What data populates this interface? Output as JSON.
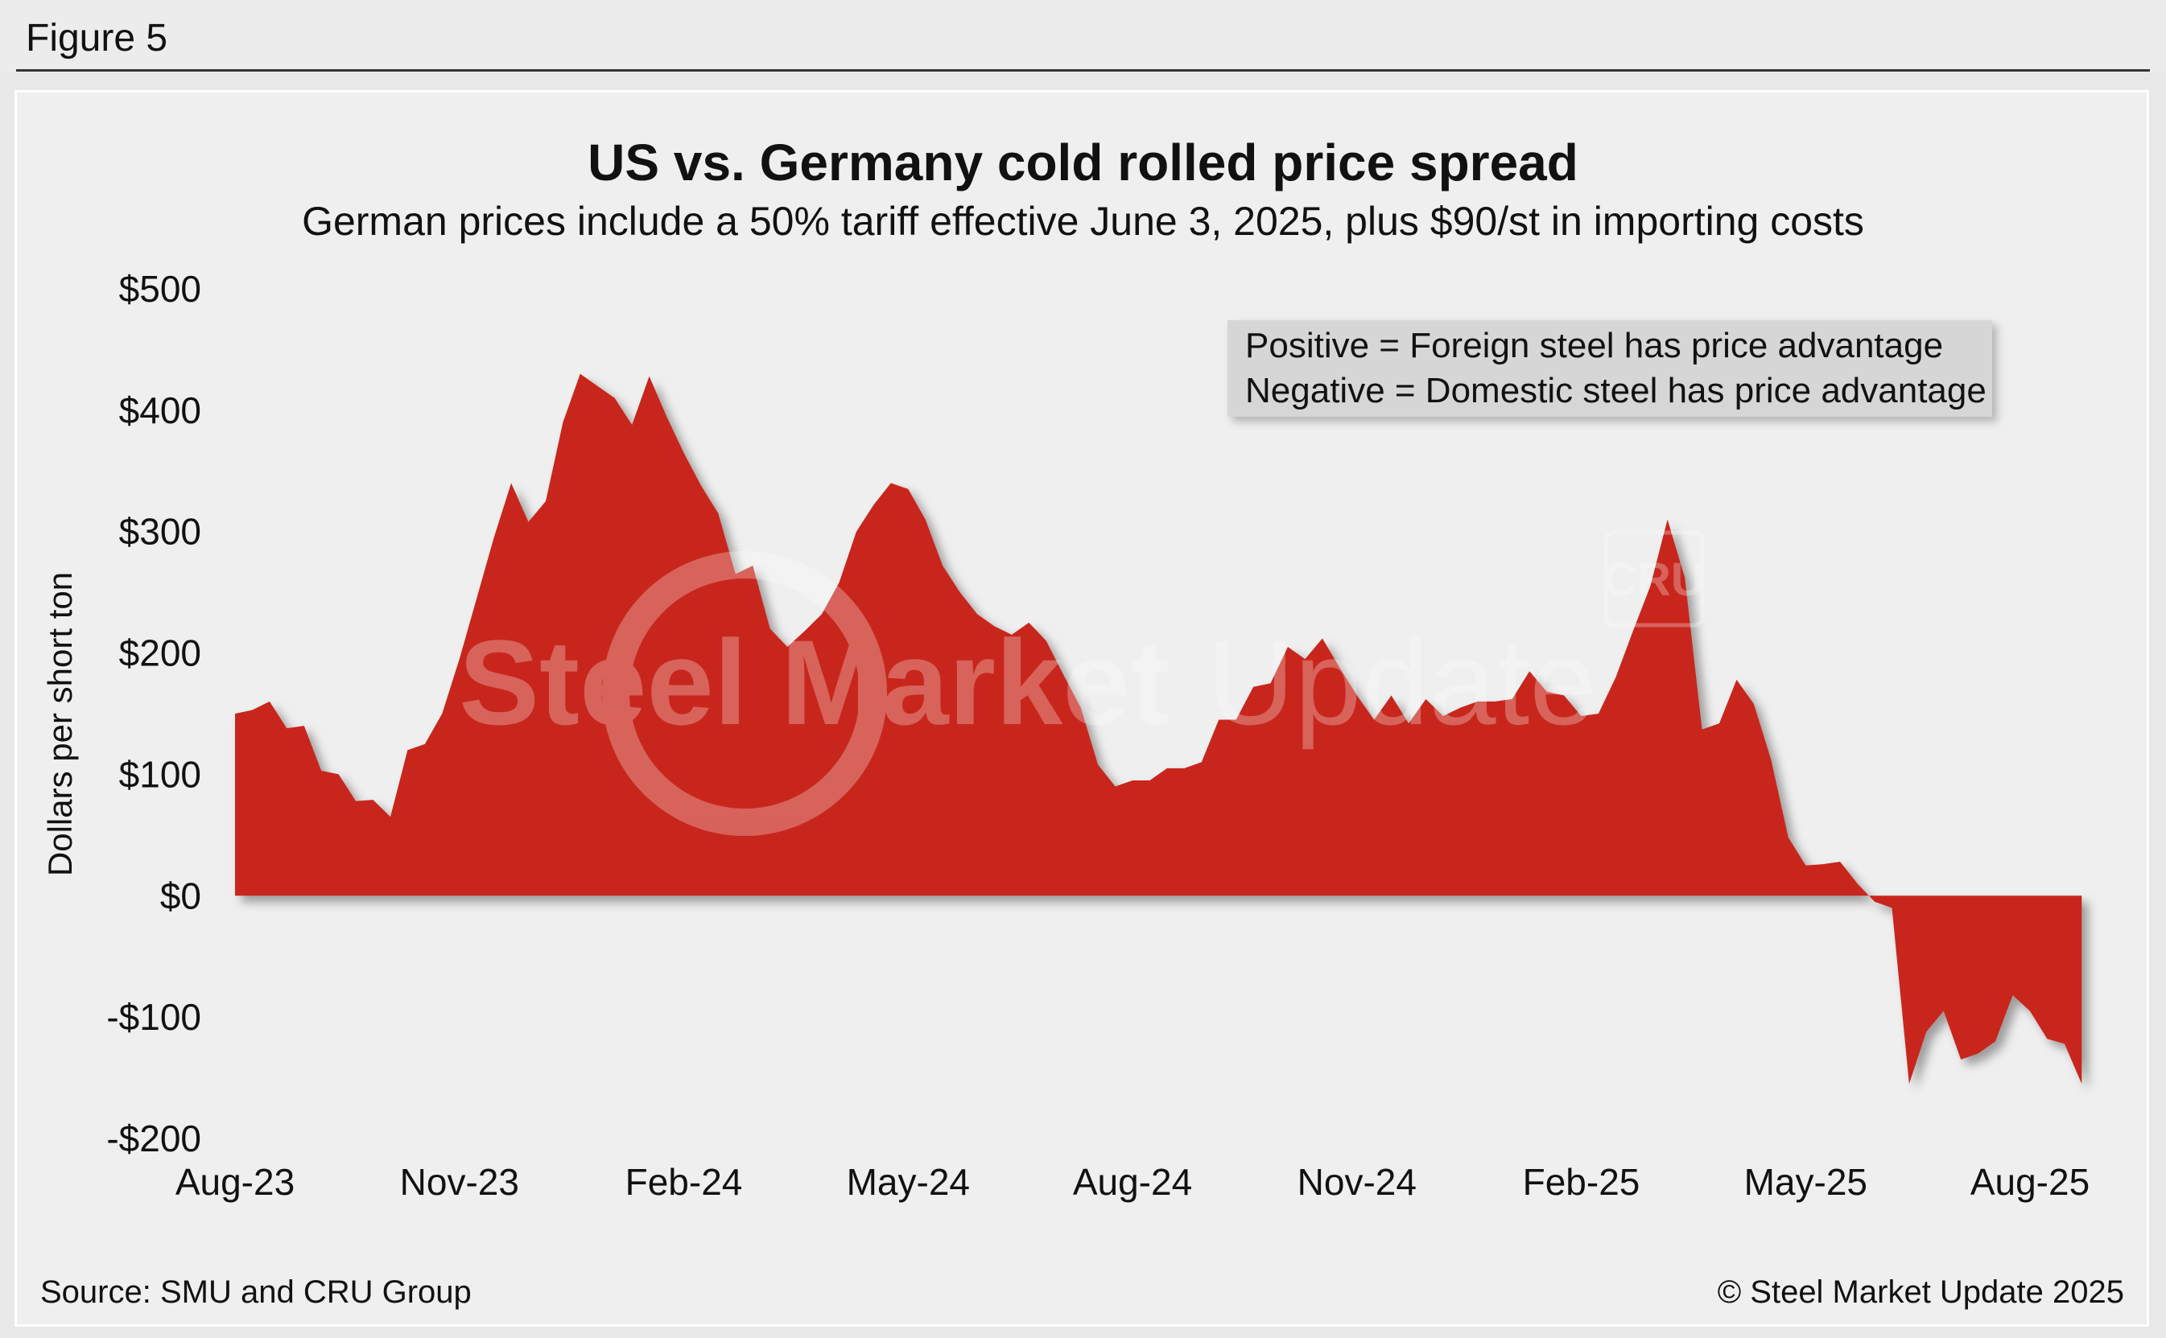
{
  "figure_label": "Figure 5",
  "source": "Source: SMU and CRU Group",
  "copyright": "© Steel Market Update 2025",
  "watermark": {
    "text_bold": "Steel Market",
    "text_light": "Update",
    "badge": "CRU"
  },
  "legend_note": {
    "line1": "Positive = Foreign steel has price advantage",
    "line2": "Negative = Domestic steel has price advantage"
  },
  "colors": {
    "area_fill": "#c8281e",
    "watermark": "#ffffff"
  },
  "chart_data": {
    "type": "area",
    "title": "US vs. Germany cold rolled price spread",
    "subtitle": "German prices include a 50% tariff effective June 3, 2025, plus $90/st in importing costs",
    "xlabel": "",
    "ylabel": "Dollars per short ton",
    "ylim": [
      -200,
      500
    ],
    "yticks": [
      500,
      400,
      300,
      200,
      100,
      0,
      -100,
      -200
    ],
    "ytick_labels": [
      "$500",
      "$400",
      "$300",
      "$200",
      "$100",
      "$0",
      "-$100",
      "-$200"
    ],
    "xtick_labels": [
      "Aug-23",
      "Nov-23",
      "Feb-24",
      "May-24",
      "Aug-24",
      "Nov-24",
      "Feb-25",
      "May-25",
      "Aug-25"
    ],
    "x_unit": "weeks since Aug-23",
    "x_range": [
      0,
      104
    ],
    "grid": false,
    "series": [
      {
        "name": "",
        "points": [
          [
            0,
            150
          ],
          [
            1,
            153
          ],
          [
            2,
            160
          ],
          [
            3,
            138
          ],
          [
            4,
            140
          ],
          [
            5,
            103
          ],
          [
            6,
            100
          ],
          [
            7,
            78
          ],
          [
            8,
            79
          ],
          [
            9,
            65
          ],
          [
            10,
            120
          ],
          [
            11,
            125
          ],
          [
            12,
            150
          ],
          [
            13,
            195
          ],
          [
            14,
            245
          ],
          [
            15,
            295
          ],
          [
            16,
            340
          ],
          [
            17,
            308
          ],
          [
            18,
            325
          ],
          [
            19,
            390
          ],
          [
            20,
            430
          ],
          [
            21,
            420
          ],
          [
            22,
            410
          ],
          [
            23,
            388
          ],
          [
            24,
            428
          ],
          [
            25,
            395
          ],
          [
            26,
            365
          ],
          [
            27,
            338
          ],
          [
            28,
            315
          ],
          [
            29,
            265
          ],
          [
            30,
            272
          ],
          [
            31,
            220
          ],
          [
            32,
            205
          ],
          [
            33,
            218
          ],
          [
            34,
            232
          ],
          [
            35,
            258
          ],
          [
            36,
            300
          ],
          [
            37,
            322
          ],
          [
            38,
            340
          ],
          [
            39,
            335
          ],
          [
            40,
            310
          ],
          [
            41,
            272
          ],
          [
            42,
            250
          ],
          [
            43,
            232
          ],
          [
            44,
            222
          ],
          [
            45,
            215
          ],
          [
            46,
            225
          ],
          [
            47,
            210
          ],
          [
            48,
            182
          ],
          [
            49,
            155
          ],
          [
            50,
            108
          ],
          [
            51,
            90
          ],
          [
            52,
            95
          ],
          [
            53,
            95
          ],
          [
            54,
            105
          ],
          [
            55,
            105
          ],
          [
            56,
            110
          ],
          [
            57,
            145
          ],
          [
            58,
            145
          ],
          [
            59,
            172
          ],
          [
            60,
            175
          ],
          [
            61,
            205
          ],
          [
            62,
            195
          ],
          [
            63,
            212
          ],
          [
            64,
            188
          ],
          [
            65,
            165
          ],
          [
            66,
            145
          ],
          [
            67,
            165
          ],
          [
            68,
            142
          ],
          [
            69,
            162
          ],
          [
            70,
            148
          ],
          [
            71,
            155
          ],
          [
            72,
            160
          ],
          [
            73,
            160
          ],
          [
            74,
            162
          ],
          [
            75,
            185
          ],
          [
            76,
            168
          ],
          [
            77,
            165
          ],
          [
            78,
            148
          ],
          [
            79,
            150
          ],
          [
            80,
            180
          ],
          [
            81,
            218
          ],
          [
            82,
            255
          ],
          [
            83,
            310
          ],
          [
            84,
            262
          ],
          [
            85,
            137
          ],
          [
            86,
            142
          ],
          [
            87,
            178
          ],
          [
            88,
            158
          ],
          [
            89,
            112
          ],
          [
            90,
            48
          ],
          [
            91,
            25
          ],
          [
            92,
            26
          ],
          [
            93,
            28
          ],
          [
            94,
            10
          ],
          [
            95,
            -5
          ],
          [
            96,
            -10
          ],
          [
            97,
            -155
          ],
          [
            98,
            -112
          ],
          [
            99,
            -95
          ],
          [
            100,
            -135
          ],
          [
            101,
            -130
          ],
          [
            102,
            -120
          ],
          [
            103,
            -82
          ],
          [
            104,
            -95
          ],
          [
            105,
            -118
          ],
          [
            106,
            -122
          ],
          [
            107,
            -155
          ]
        ]
      }
    ]
  }
}
